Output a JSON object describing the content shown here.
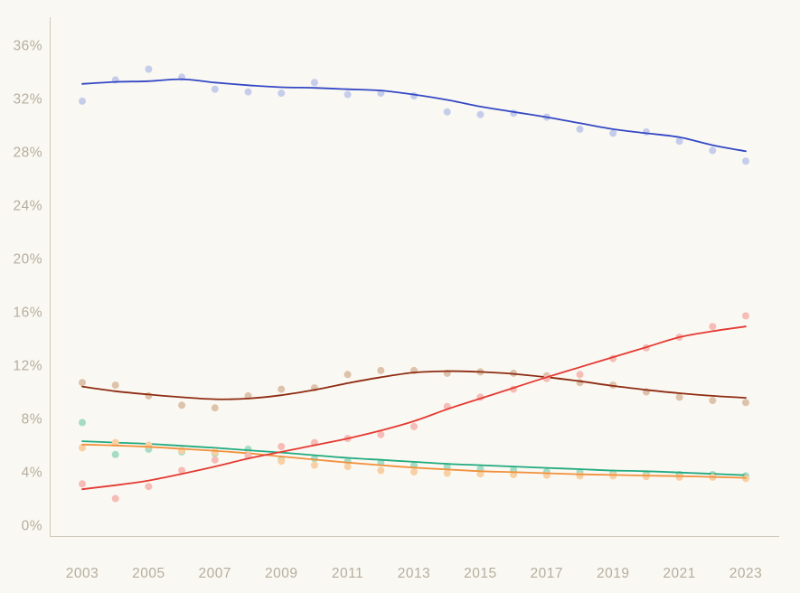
{
  "chart_data": {
    "type": "scatter",
    "title": "",
    "xlabel": "",
    "ylabel": "",
    "unit": "%",
    "grid": false,
    "legend": "none",
    "xlim": [
      2002,
      2024
    ],
    "ylim": [
      0,
      38
    ],
    "years": [
      2003,
      2004,
      2005,
      2006,
      2007,
      2008,
      2009,
      2010,
      2011,
      2012,
      2013,
      2014,
      2015,
      2016,
      2017,
      2018,
      2019,
      2020,
      2021,
      2022,
      2023
    ],
    "x_tick_labels": [
      "2003",
      "2005",
      "2007",
      "2009",
      "2011",
      "2013",
      "2015",
      "2017",
      "2019",
      "2021",
      "2023"
    ],
    "x_tick_years": [
      2003,
      2005,
      2007,
      2009,
      2011,
      2013,
      2015,
      2017,
      2019,
      2021,
      2023
    ],
    "y_tick_values": [
      0,
      4,
      8,
      12,
      16,
      20,
      24,
      28,
      32,
      36
    ],
    "y_tick_labels": [
      "0%",
      "4%",
      "8%",
      "12%",
      "16%",
      "20%",
      "24%",
      "28%",
      "32%",
      "36%"
    ],
    "series": [
      {
        "name": "dark-red-series",
        "line_color": "#8e2c12",
        "dot_color": "#ddc3ab",
        "scatter": [
          10.7,
          10.5,
          9.7,
          9.0,
          8.8,
          9.7,
          10.2,
          10.3,
          11.3,
          11.6,
          11.6,
          11.4,
          11.5,
          11.4,
          11.2,
          10.7,
          10.5,
          10.0,
          9.6,
          9.35,
          9.2
        ],
        "trend": [
          10.4,
          10.05,
          9.8,
          9.6,
          9.45,
          9.5,
          9.75,
          10.15,
          10.65,
          11.1,
          11.45,
          11.55,
          11.5,
          11.35,
          11.1,
          10.8,
          10.45,
          10.15,
          9.9,
          9.7,
          9.55
        ]
      },
      {
        "name": "teal-series",
        "line_color": "#21aa80",
        "dot_color": "#a5dcc5",
        "scatter": [
          7.7,
          5.3,
          5.7,
          5.5,
          5.4,
          5.7,
          4.9,
          5.0,
          4.8,
          4.7,
          4.5,
          4.4,
          4.2,
          4.15,
          4.0,
          4.0,
          3.9,
          3.85,
          3.8,
          3.8,
          3.7
        ],
        "trend": [
          6.3,
          6.2,
          6.1,
          5.95,
          5.8,
          5.62,
          5.45,
          5.25,
          5.05,
          4.9,
          4.75,
          4.6,
          4.5,
          4.4,
          4.3,
          4.2,
          4.1,
          4.05,
          3.95,
          3.85,
          3.75
        ]
      },
      {
        "name": "orange-series",
        "line_color": "#f2913d",
        "dot_color": "#f8d0a4",
        "scatter": [
          5.8,
          6.2,
          6.0,
          5.6,
          5.5,
          5.3,
          4.8,
          4.5,
          4.4,
          4.1,
          4.0,
          3.9,
          3.85,
          3.8,
          3.75,
          3.7,
          3.7,
          3.65,
          3.6,
          3.6,
          3.5
        ],
        "trend": [
          6.05,
          5.98,
          5.88,
          5.73,
          5.58,
          5.4,
          5.15,
          4.92,
          4.7,
          4.5,
          4.32,
          4.18,
          4.05,
          3.98,
          3.9,
          3.82,
          3.77,
          3.72,
          3.68,
          3.62,
          3.55
        ]
      },
      {
        "name": "red-series",
        "line_color": "#e43a33",
        "dot_color": "#f6bcb6",
        "scatter": [
          3.1,
          2.0,
          2.9,
          4.1,
          4.9,
          5.2,
          5.9,
          6.2,
          6.5,
          6.8,
          7.4,
          8.9,
          9.6,
          10.2,
          11.0,
          11.3,
          12.5,
          13.3,
          14.1,
          14.9,
          15.7
        ],
        "trend": [
          2.7,
          3.0,
          3.35,
          3.85,
          4.4,
          5.0,
          5.5,
          6.0,
          6.5,
          7.1,
          7.8,
          8.7,
          9.5,
          10.3,
          11.1,
          11.85,
          12.6,
          13.35,
          14.1,
          14.55,
          14.9
        ]
      },
      {
        "name": "blue-series",
        "line_color": "#3448c5",
        "dot_color": "#c5cdeb",
        "scatter": [
          31.8,
          33.4,
          34.2,
          33.6,
          32.7,
          32.5,
          32.4,
          33.2,
          32.3,
          32.4,
          32.2,
          31.0,
          30.8,
          30.9,
          30.6,
          29.7,
          29.4,
          29.5,
          28.8,
          28.1,
          27.3
        ],
        "trend": [
          33.1,
          33.25,
          33.3,
          33.45,
          33.2,
          33.0,
          32.85,
          32.8,
          32.7,
          32.6,
          32.3,
          31.9,
          31.4,
          31.0,
          30.6,
          30.15,
          29.7,
          29.4,
          29.1,
          28.5,
          28.05
        ]
      }
    ],
    "style": {
      "background": "#faf8f2",
      "axis_line_color": "#d0c9bd",
      "tick_label_color": "#b6ae9f",
      "dot_radius": 4,
      "line_width": 1.8
    }
  }
}
